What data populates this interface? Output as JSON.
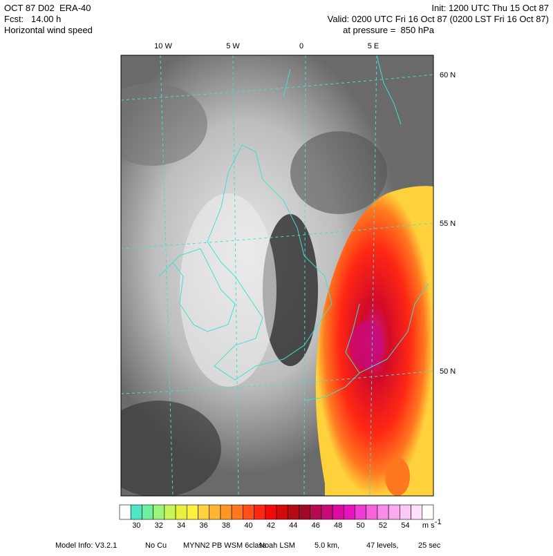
{
  "header": {
    "left": [
      "OCT 87 D02  ERA-40",
      "Fcst:   14.00 h",
      "Horizontal wind speed"
    ],
    "right": [
      "Init: 1200 UTC Thu 15 Oct 87",
      "Valid: 0200 UTC Fri 16 Oct 87 (0200 LST Fri 16 Oct 87)",
      "at pressure =  850 hPa"
    ]
  },
  "map": {
    "lon_labels": [
      "10 W",
      "5 W",
      "0",
      "5 E"
    ],
    "lat_labels": [
      "60 N",
      "55 N",
      "50 N"
    ]
  },
  "colorbar": {
    "ticks": [
      30,
      32,
      34,
      36,
      38,
      40,
      42,
      44,
      46,
      48,
      50,
      52,
      54
    ],
    "unit": "m s",
    "unit_exp": "-1",
    "colors": [
      "#ffffff",
      "#4fe6c8",
      "#6ef0a0",
      "#9cf57a",
      "#c8f55a",
      "#e8f040",
      "#fff03c",
      "#ffd23c",
      "#ffb432",
      "#ff9628",
      "#ff7820",
      "#ff501a",
      "#ff2814",
      "#f00a0a",
      "#d20a0a",
      "#b40a14",
      "#a00a28",
      "#b40a50",
      "#c80a78",
      "#dc0aa0",
      "#e614be",
      "#f03cd2",
      "#f564dc",
      "#f88ce6",
      "#faaaf0",
      "#fcc8f5",
      "#fde1fa",
      "#ffffff"
    ]
  },
  "footer": [
    "Model Info: V3.2.1",
    "No Cu",
    "MYNN2 PB WSM 6class",
    "Noah LSM",
    "5.0 km,",
    "47 levels,",
    "25 sec"
  ]
}
